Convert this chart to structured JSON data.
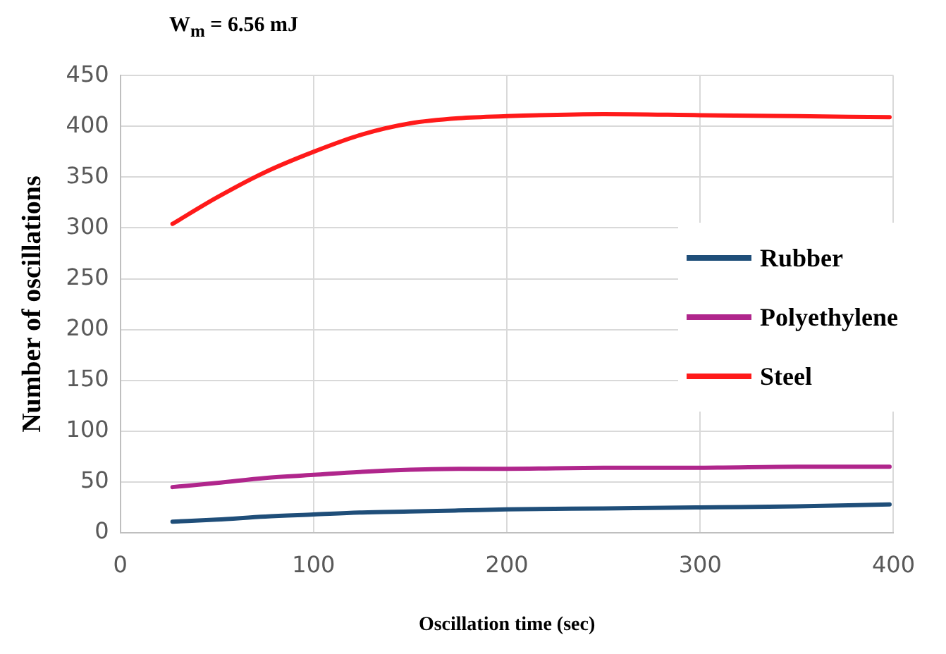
{
  "chart_data": {
    "type": "line",
    "title": "W$_{m}$ = 6.56 mJ",
    "xlabel": "Oscillation time (sec)",
    "ylabel": "Number of oscillations",
    "xlim": [
      0,
      400
    ],
    "xticks": [
      0,
      100,
      200,
      300,
      400
    ],
    "ylim": [
      0,
      450
    ],
    "yticks": [
      0,
      50,
      100,
      150,
      200,
      250,
      300,
      350,
      400,
      450
    ],
    "grid": true,
    "legend": "right",
    "marker": "none",
    "line_style": "solid",
    "x": [
      27,
      50,
      75,
      100,
      125,
      150,
      175,
      200,
      250,
      300,
      350,
      398
    ],
    "series": [
      {
        "name": "Rubber",
        "color": "#1f4e79",
        "values": [
          11,
          13,
          16,
          18,
          20,
          21,
          22,
          23,
          24,
          25,
          26,
          28
        ]
      },
      {
        "name": "Polyethylene",
        "color": "#b0268c",
        "values": [
          45,
          49,
          54,
          57,
          60,
          62,
          63,
          63,
          64,
          64,
          65,
          65
        ]
      },
      {
        "name": "Steel",
        "color": "#ff1a1a",
        "values": [
          304,
          330,
          355,
          375,
          392,
          403,
          408,
          410,
          412,
          411,
          410,
          409
        ]
      }
    ]
  }
}
